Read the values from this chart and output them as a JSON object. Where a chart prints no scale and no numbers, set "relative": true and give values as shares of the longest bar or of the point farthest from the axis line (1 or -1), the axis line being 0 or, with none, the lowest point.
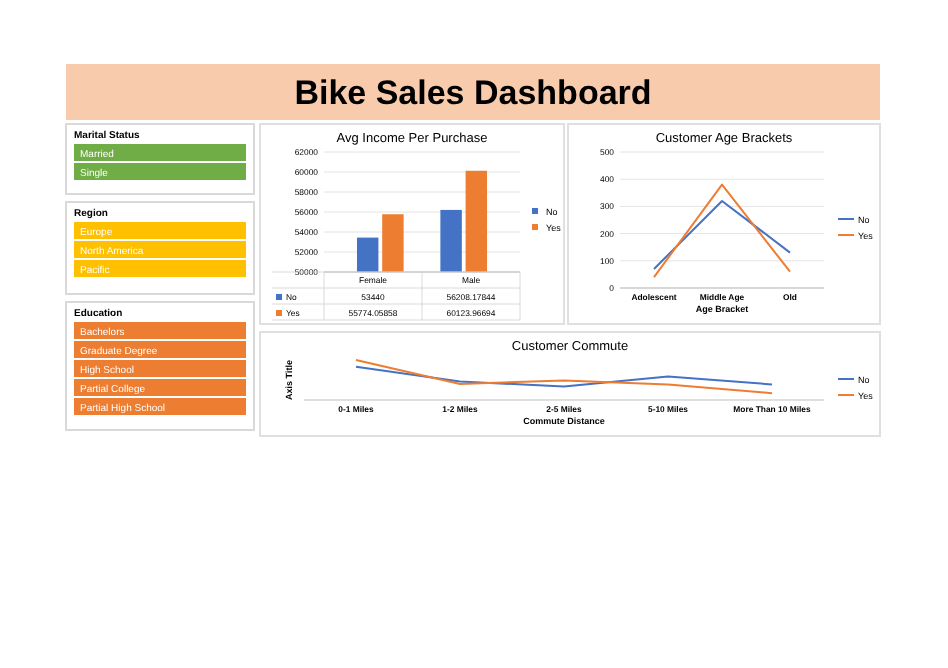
{
  "chart_data": [
    {
      "type": "other",
      "title": "Bike Sales Dashboard",
      "color": "#f8cbad"
    },
    {
      "type": "other",
      "title": "Marital Status",
      "categories": [
        "Married",
        "Single"
      ],
      "color": "#70ad47"
    },
    {
      "type": "other",
      "title": "Region",
      "categories": [
        "Europe",
        "North America",
        "Pacific"
      ],
      "color": "#ffc000"
    },
    {
      "type": "other",
      "title": "Education",
      "categories": [
        "Bachelors",
        "Graduate Degree",
        "High School",
        "Partial College",
        "Partial High School"
      ],
      "color": "#ed7d31"
    },
    {
      "type": "bar",
      "title": "Avg Income Per Purchase",
      "categories": [
        "Female",
        "Male"
      ],
      "series": [
        {
          "name": "No",
          "color": "#4472c4",
          "values": [
            53440,
            56208.17844
          ],
          "value_labels": [
            "53440",
            "56208.17844"
          ]
        },
        {
          "name": "Yes",
          "color": "#ed7d31",
          "values": [
            55774.05858,
            60123.96694
          ],
          "value_labels": [
            "55774.05858",
            "60123.96694"
          ]
        }
      ],
      "ylim": [
        50000,
        62000
      ],
      "yticks": [
        50000,
        52000,
        54000,
        56000,
        58000,
        60000,
        62000
      ],
      "grid": "y",
      "legend": "right"
    },
    {
      "type": "line",
      "title": "Customer Age Brackets",
      "xlabel": "Age Bracket",
      "categories": [
        "Adolescent",
        "Middle Age",
        "Old"
      ],
      "series": [
        {
          "name": "No",
          "color": "#4472c4",
          "values": [
            70,
            320,
            130
          ]
        },
        {
          "name": "Yes",
          "color": "#ed7d31",
          "values": [
            40,
            380,
            60
          ]
        }
      ],
      "ylim": [
        0,
        500
      ],
      "yticks": [
        0,
        100,
        200,
        300,
        400,
        500
      ],
      "grid": "y",
      "legend": "right"
    },
    {
      "type": "line",
      "title": "Customer Commute",
      "xlabel": "Commute Distance",
      "ylabel": "Axis Title",
      "relative": true,
      "categories": [
        "0-1 Miles",
        "1-2 Miles",
        "2-5 Miles",
        "5-10 Miles",
        "More Than 10 Miles"
      ],
      "series": [
        {
          "name": "No",
          "color": "#4472c4",
          "values": [
            0.83,
            0.46,
            0.34,
            0.59,
            0.39
          ]
        },
        {
          "name": "Yes",
          "color": "#ed7d31",
          "values": [
            1,
            0.4,
            0.49,
            0.39,
            0.17
          ]
        }
      ],
      "legend": "right"
    }
  ]
}
